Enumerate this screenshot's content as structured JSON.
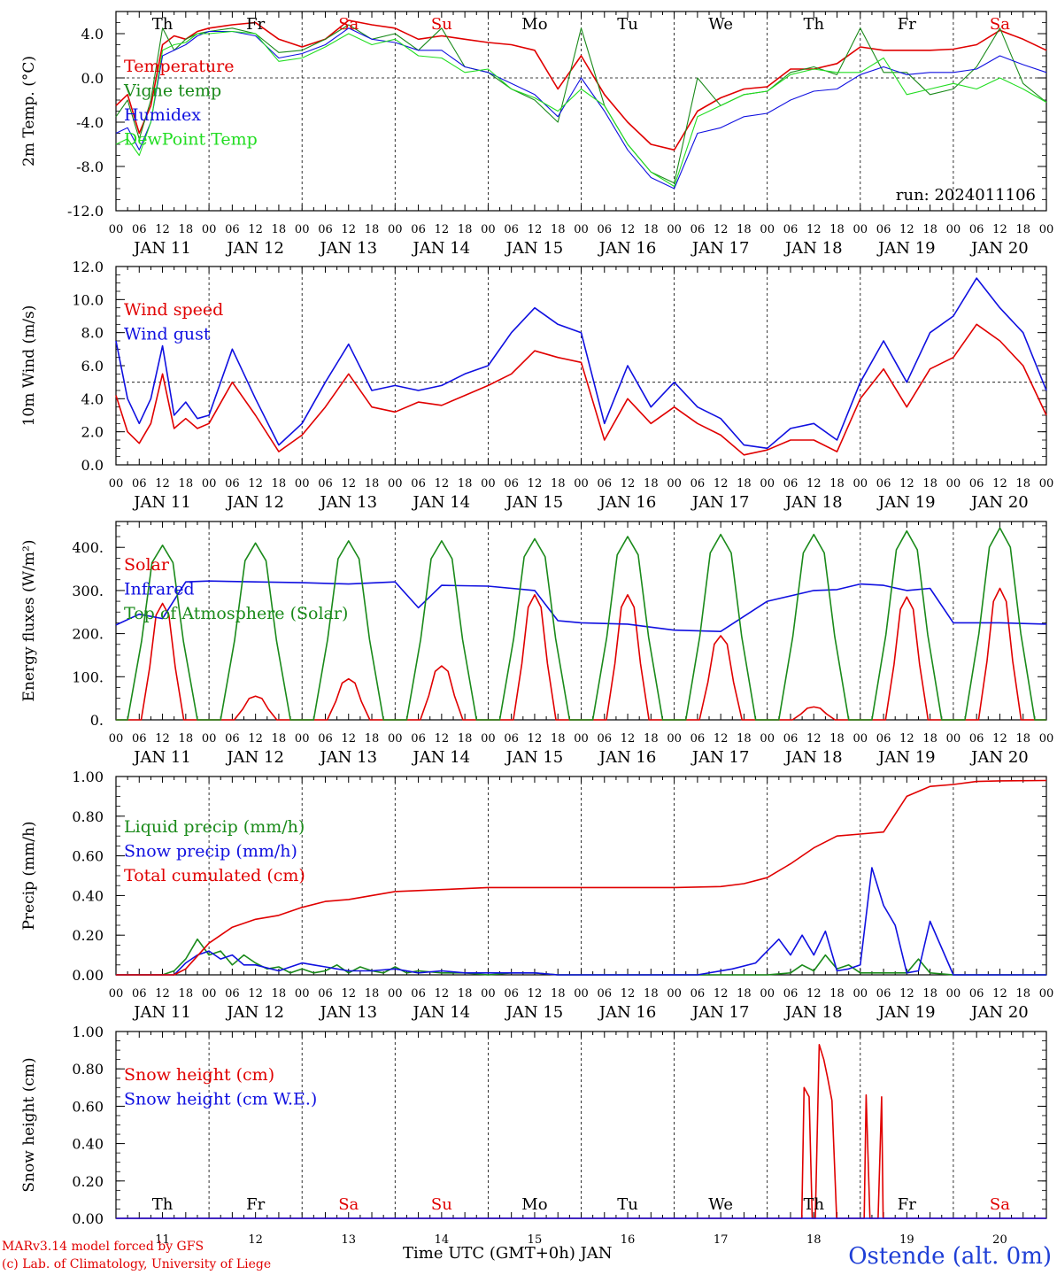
{
  "credits": {
    "line1": "MARv3.14 model forced by GFS",
    "line2": "(c) Lab. of Climatology, University of Liege",
    "station": "Ostende (alt. 0m)",
    "xtitle": "Time UTC (GMT+0h) JAN"
  },
  "colors": {
    "red": "#e00000",
    "green": "#1a8a1a",
    "blue": "#1010e0",
    "lightgreen": "#22dd22"
  },
  "chart_data": [
    {
      "type": "line",
      "ylabel": "2m Temp. (°C)",
      "ylim": [
        -12,
        6
      ],
      "yticks": [
        "4.0",
        "0.0",
        "-4.0",
        "-8.0",
        "-12.0"
      ],
      "yticks_v": [
        4,
        0,
        -4,
        -8,
        -12
      ],
      "hline": 0,
      "run": "run: 2024011106",
      "days": [
        "Th",
        "Fr",
        "Sa",
        "Su",
        "Mo",
        "Tu",
        "We",
        "Th",
        "Fr",
        "Sa"
      ],
      "day_colors": [
        "#000",
        "#000",
        "#e00000",
        "#e00000",
        "#000",
        "#000",
        "#000",
        "#000",
        "#000",
        "#e00000"
      ],
      "x_hours": [
        0,
        3,
        6,
        9,
        12,
        15,
        18,
        21,
        24,
        30,
        36,
        42,
        48,
        54,
        60,
        66,
        72,
        78,
        84,
        90,
        96,
        102,
        108,
        114,
        120,
        126,
        132,
        138,
        144,
        150,
        156,
        162,
        168,
        174,
        180,
        186,
        192,
        198,
        204,
        210,
        216,
        222,
        228,
        234,
        240
      ],
      "series": [
        {
          "name": "Temperature",
          "color": "#e00000",
          "values": [
            -2.5,
            -1.5,
            -5,
            -2.5,
            3,
            3.8,
            3.5,
            4.2,
            4.5,
            4.8,
            5,
            3.5,
            2.8,
            3.5,
            5.2,
            4.8,
            4.5,
            3.5,
            3.8,
            3.5,
            3.2,
            3,
            2.5,
            -1,
            2,
            -1.5,
            -4,
            -6,
            -6.5,
            -3,
            -1.8,
            -1,
            -0.8,
            0.8,
            0.8,
            1.3,
            2.8,
            2.5,
            2.5,
            2.5,
            2.6,
            3,
            4.3,
            3.5,
            2.5
          ]
        },
        {
          "name": "Vigne temp",
          "color": "#1a8a1a",
          "values": [
            -3.5,
            -2,
            -5.5,
            -2,
            4.5,
            2.5,
            3.5,
            4,
            4.2,
            4.5,
            4,
            2.3,
            2.5,
            3.5,
            4.8,
            3.5,
            4,
            2.5,
            4.5,
            1,
            0.5,
            -1,
            -2,
            -4,
            4.5,
            -2.5,
            -6,
            -8.5,
            -9.5,
            0,
            -2.5,
            -1.5,
            -1.2,
            0.5,
            1,
            0.3,
            4.5,
            0.5,
            0.5,
            -1.5,
            -1,
            1,
            4.5,
            -0.5,
            -2.2
          ]
        },
        {
          "name": "Humidex",
          "color": "#1010e0",
          "values": [
            -5,
            -4.5,
            -6.5,
            -4,
            2,
            2.5,
            3,
            3.8,
            4.2,
            4.2,
            3.8,
            1.8,
            2.2,
            3,
            4.5,
            3.5,
            3.2,
            2.5,
            2.5,
            1,
            0.5,
            -0.5,
            -1.5,
            -3.5,
            0,
            -3,
            -6.5,
            -9,
            -10,
            -5,
            -4.5,
            -3.5,
            -3.2,
            -2,
            -1.2,
            -1,
            0.3,
            1,
            0.3,
            0.5,
            0.5,
            0.8,
            2,
            1.2,
            0.5
          ]
        },
        {
          "name": "DewPoint Temp",
          "color": "#22dd22",
          "values": [
            -6,
            -5.5,
            -7,
            -4,
            2.5,
            3,
            3.2,
            4,
            4,
            4.2,
            4,
            1.5,
            1.8,
            2.8,
            4,
            3,
            3.5,
            2,
            1.8,
            0.5,
            0.8,
            -1,
            -1.8,
            -3,
            -1,
            -2.5,
            -6,
            -8.5,
            -9.8,
            -3.5,
            -2.5,
            -1.5,
            -1.2,
            0.3,
            0.8,
            0.5,
            0.5,
            1.8,
            -1.5,
            -1,
            -0.5,
            -1,
            0,
            -1,
            -2.2
          ]
        }
      ]
    },
    {
      "type": "line",
      "ylabel": "10m Wind (m/s)",
      "ylim": [
        0,
        12
      ],
      "yticks": [
        "12.0",
        "10.0",
        "8.0",
        "6.0",
        "4.0",
        "2.0",
        "0.0"
      ],
      "yticks_v": [
        12,
        10,
        8,
        6,
        4,
        2,
        0
      ],
      "hline": 5,
      "x_hours": [
        0,
        3,
        6,
        9,
        12,
        15,
        18,
        21,
        24,
        30,
        36,
        42,
        48,
        54,
        60,
        66,
        72,
        78,
        84,
        90,
        96,
        102,
        108,
        114,
        120,
        126,
        132,
        138,
        144,
        150,
        156,
        162,
        168,
        174,
        180,
        186,
        192,
        198,
        204,
        210,
        216,
        222,
        228,
        234,
        240
      ],
      "series": [
        {
          "name": "Wind speed",
          "color": "#e00000",
          "values": [
            4.2,
            2,
            1.3,
            2.5,
            5.5,
            2.2,
            2.8,
            2.2,
            2.5,
            5,
            3,
            0.8,
            1.8,
            3.5,
            5.5,
            3.5,
            3.2,
            3.8,
            3.6,
            4.2,
            4.8,
            5.5,
            6.9,
            6.5,
            6.2,
            1.5,
            4,
            2.5,
            3.5,
            2.5,
            1.8,
            0.6,
            0.9,
            1.5,
            1.5,
            0.8,
            4,
            5.8,
            3.5,
            5.8,
            6.5,
            8.5,
            7.5,
            6,
            3
          ]
        },
        {
          "name": "Wind gust",
          "color": "#1010e0",
          "values": [
            7.5,
            4,
            2.5,
            4,
            7.2,
            3,
            3.8,
            2.8,
            3,
            7,
            4,
            1.2,
            2.5,
            5,
            7.3,
            4.5,
            4.8,
            4.5,
            4.8,
            5.5,
            6,
            8,
            9.5,
            8.5,
            8,
            2.5,
            6,
            3.5,
            5,
            3.5,
            2.8,
            1.2,
            1,
            2.2,
            2.5,
            1.5,
            5,
            7.5,
            5,
            8,
            9,
            11.3,
            9.5,
            8,
            4.5
          ]
        }
      ]
    },
    {
      "type": "line",
      "ylabel": "Energy fluxes (W/m²)",
      "ylim": [
        0,
        460
      ],
      "yticks": [
        "400.",
        "300.",
        "200.",
        "100.",
        "0."
      ],
      "yticks_v": [
        400,
        300,
        200,
        100,
        0
      ],
      "hline": null,
      "series": [
        {
          "name": "Solar",
          "color": "#e00000",
          "peaks": [
            270,
            55,
            95,
            125,
            290,
            290,
            195,
            30,
            285,
            305
          ]
        },
        {
          "name": "Infrared",
          "color": "#1010e0",
          "x_hours": [
            0,
            6,
            12,
            18,
            24,
            36,
            48,
            60,
            72,
            78,
            84,
            96,
            108,
            114,
            120,
            132,
            144,
            156,
            168,
            180,
            186,
            192,
            198,
            204,
            210,
            216,
            228,
            240
          ],
          "values": [
            220,
            245,
            235,
            320,
            322,
            320,
            318,
            315,
            320,
            260,
            312,
            310,
            300,
            230,
            225,
            222,
            208,
            205,
            275,
            300,
            302,
            315,
            312,
            300,
            305,
            225,
            225,
            222
          ]
        },
        {
          "name": "Top of Atmosphere (Solar)",
          "color": "#1a8a1a",
          "peaks": [
            405,
            410,
            415,
            415,
            420,
            425,
            430,
            430,
            438,
            445
          ]
        }
      ]
    },
    {
      "type": "line",
      "ylabel": "Precip (mm/h)",
      "ylim": [
        0,
        1
      ],
      "yticks": [
        "1.00",
        "0.80",
        "0.60",
        "0.40",
        "0.20",
        "0.00"
      ],
      "yticks_v": [
        1,
        0.8,
        0.6,
        0.4,
        0.2,
        0
      ],
      "hline": null,
      "series": [
        {
          "name": "Liquid precip (mm/h)",
          "color": "#1a8a1a",
          "x_hours": [
            0,
            12,
            15,
            18,
            21,
            24,
            27,
            30,
            33,
            36,
            39,
            42,
            45,
            48,
            51,
            54,
            57,
            60,
            63,
            66,
            69,
            72,
            75,
            78,
            84,
            90,
            96,
            102,
            108,
            114,
            120,
            150,
            165,
            168,
            174,
            177,
            180,
            183,
            186,
            189,
            192,
            198,
            204,
            207,
            210,
            216,
            228,
            240
          ],
          "values": [
            0,
            0,
            0.02,
            0.08,
            0.18,
            0.1,
            0.12,
            0.05,
            0.1,
            0.06,
            0.03,
            0.04,
            0.01,
            0.03,
            0.01,
            0.02,
            0.05,
            0.01,
            0.04,
            0.02,
            0.01,
            0.04,
            0.01,
            0.02,
            0.01,
            0.01,
            0,
            0.01,
            0.01,
            0,
            0,
            0,
            0,
            0,
            0.01,
            0.05,
            0.02,
            0.1,
            0.03,
            0.05,
            0.01,
            0.01,
            0.01,
            0.08,
            0.01,
            0,
            0,
            0
          ]
        },
        {
          "name": "Snow precip (mm/h)",
          "color": "#1010e0",
          "x_hours": [
            0,
            15,
            18,
            21,
            24,
            27,
            30,
            33,
            36,
            42,
            48,
            51,
            54,
            57,
            60,
            66,
            72,
            78,
            84,
            90,
            96,
            102,
            108,
            114,
            120,
            150,
            159,
            165,
            168,
            171,
            174,
            177,
            180,
            183,
            186,
            189,
            192,
            195,
            198,
            201,
            204,
            207,
            210,
            216,
            228,
            240
          ],
          "values": [
            0,
            0,
            0.06,
            0.1,
            0.12,
            0.08,
            0.1,
            0.05,
            0.05,
            0.02,
            0.06,
            0.05,
            0.04,
            0.03,
            0.02,
            0.02,
            0.03,
            0.01,
            0.02,
            0.01,
            0.01,
            0.01,
            0.01,
            0,
            0,
            0,
            0.03,
            0.06,
            0.12,
            0.18,
            0.1,
            0.2,
            0.1,
            0.22,
            0.02,
            0.03,
            0.05,
            0.54,
            0.35,
            0.25,
            0.01,
            0.02,
            0.27,
            0,
            0,
            0
          ]
        },
        {
          "name": "Total cumulated (cm)",
          "color": "#e00000",
          "x_hours": [
            0,
            15,
            18,
            24,
            30,
            36,
            42,
            48,
            54,
            60,
            66,
            72,
            78,
            84,
            90,
            96,
            102,
            108,
            114,
            120,
            132,
            144,
            156,
            162,
            168,
            174,
            180,
            186,
            192,
            198,
            204,
            210,
            216,
            222,
            228,
            240
          ],
          "values": [
            0,
            0,
            0.03,
            0.16,
            0.24,
            0.28,
            0.3,
            0.34,
            0.37,
            0.38,
            0.4,
            0.42,
            0.425,
            0.43,
            0.435,
            0.44,
            0.44,
            0.44,
            0.44,
            0.44,
            0.44,
            0.44,
            0.445,
            0.46,
            0.49,
            0.56,
            0.64,
            0.7,
            0.71,
            0.72,
            0.9,
            0.95,
            0.96,
            0.975,
            0.978,
            0.98
          ]
        }
      ]
    },
    {
      "type": "line",
      "ylabel": "Snow height (cm)",
      "ylim": [
        0,
        1
      ],
      "yticks": [
        "1.00",
        "0.80",
        "0.60",
        "0.40",
        "0.20",
        "0.00"
      ],
      "yticks_v": [
        1,
        0.8,
        0.6,
        0.4,
        0.2,
        0
      ],
      "hline": null,
      "days": [
        "Th",
        "Fr",
        "Sa",
        "Su",
        "Mo",
        "Tu",
        "We",
        "Th",
        "Fr",
        "Sa"
      ],
      "day_colors": [
        "#000",
        "#000",
        "#e00000",
        "#e00000",
        "#000",
        "#000",
        "#000",
        "#000",
        "#000",
        "#e00000"
      ],
      "day_numbers": [
        "11",
        "12",
        "13",
        "14",
        "15",
        "16",
        "17",
        "18",
        "19",
        "20"
      ],
      "series": [
        {
          "name": "Snow height (cm)",
          "color": "#e00000",
          "x_hours": [
            0,
            176.9,
            177.5,
            178.8,
            179.6,
            180.4,
            181.4,
            182.6,
            183.6,
            184.7,
            185.9,
            187,
            188,
            189,
            189.6,
            190.5,
            191.9,
            193,
            193.5,
            194.5,
            195.6,
            196.6,
            197.5,
            197.9,
            198.8,
            240
          ],
          "values": [
            0,
            0,
            0.7,
            0.65,
            0,
            0,
            0.93,
            0.85,
            0.75,
            0.63,
            0,
            0,
            0,
            0,
            0,
            0,
            0,
            0,
            0.66,
            0,
            0,
            0,
            0.65,
            0,
            0,
            0
          ]
        },
        {
          "name": "Snow height (cm W.E.)",
          "color": "#1010e0",
          "x_hours": [
            0,
            240
          ],
          "values": [
            0,
            0
          ]
        }
      ]
    }
  ],
  "x_axis": {
    "hour_labels": [
      "00",
      "06",
      "12",
      "18"
    ],
    "date_labels": [
      "JAN 11",
      "JAN 12",
      "JAN 13",
      "JAN 14",
      "JAN 15",
      "JAN 16",
      "JAN 17",
      "JAN 18",
      "JAN 19",
      "JAN 20"
    ]
  }
}
